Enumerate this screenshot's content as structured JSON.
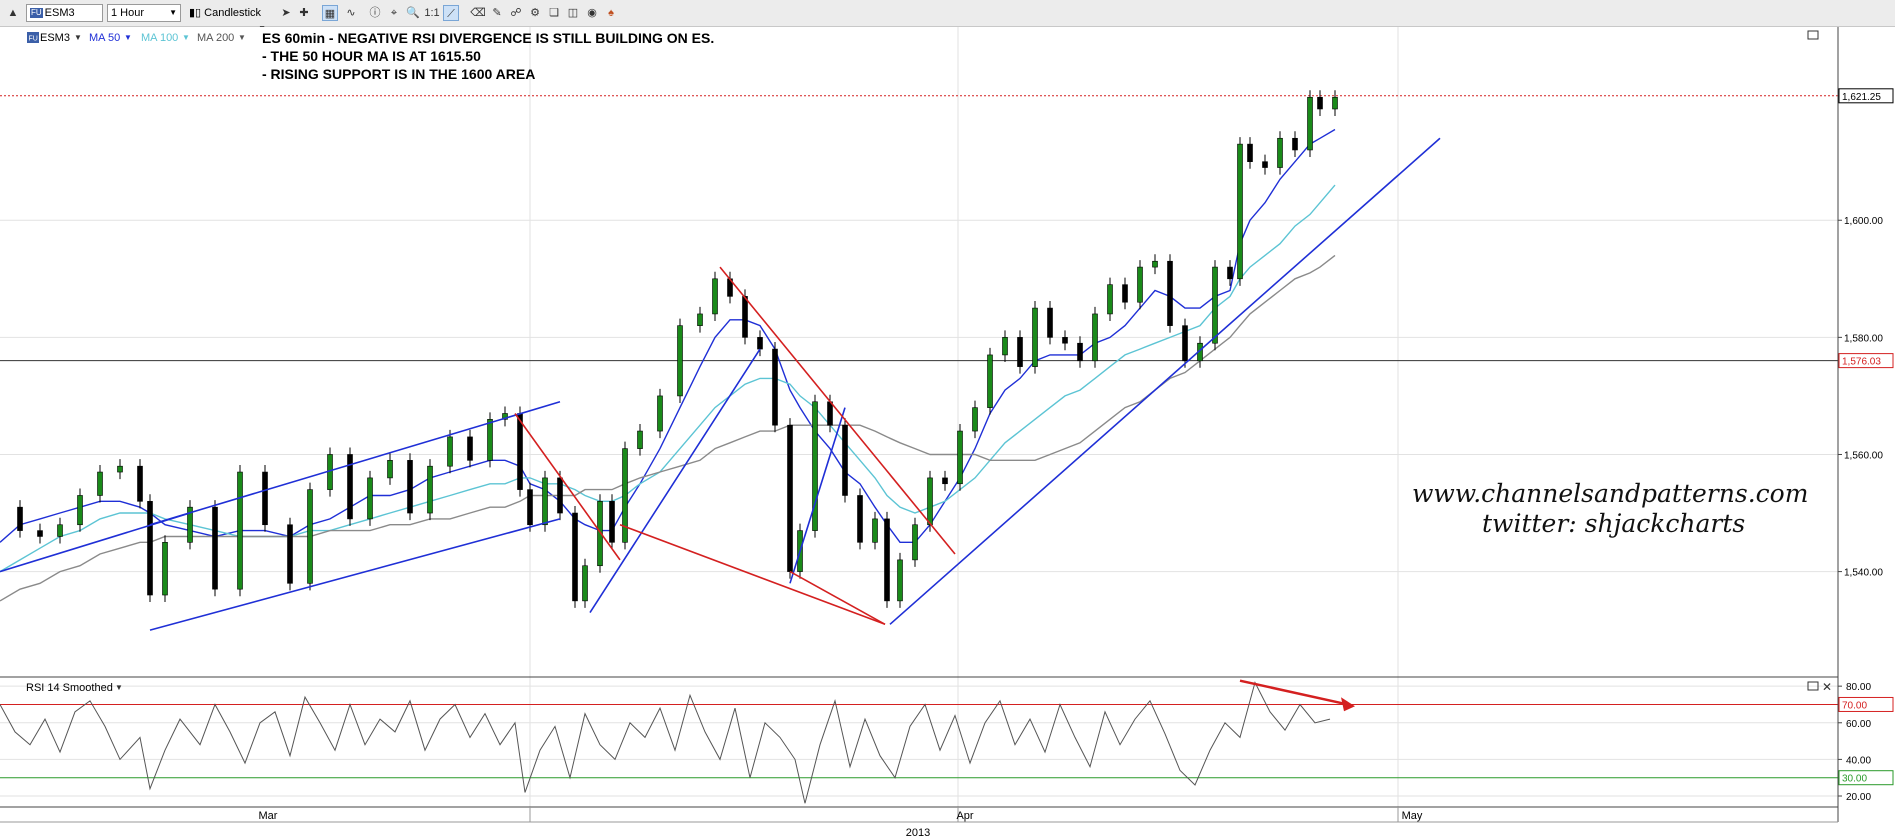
{
  "toolbar": {
    "symbol": "ESM3",
    "interval": "1 Hour",
    "chart_style": "Candlestick",
    "fu_badge": "FU"
  },
  "legend": {
    "symbol": "ESM3",
    "indicators": [
      "MA 50",
      "MA 100",
      "MA 200"
    ],
    "colors": {
      "ma50": "#1f2fd6",
      "ma100": "#5cc4d4",
      "ma200": "#8a8a8a"
    }
  },
  "annotations": {
    "title": "ES 60min - NEGATIVE RSI DIVERGENCE IS STILL BUILDING ON ES.",
    "line2": "- THE 50 HOUR MA IS AT 1615.50",
    "line3": "- RISING SUPPORT IS IN THE 1600 AREA",
    "watermark1": "www.channelsandpatterns.com",
    "watermark2": "twitter: shjackcharts"
  },
  "chart_data": [
    {
      "type": "line",
      "style": "candlestick",
      "y_axis_ticks": [
        "1,540.00",
        "1,560.00",
        "1,580.00",
        "1,600.00"
      ],
      "ylim": [
        1522,
        1633
      ],
      "price_markers": [
        {
          "label": "1,621.25",
          "value": 1621.25,
          "color": "#d42020"
        },
        {
          "label": "1,576.03",
          "value": 1576.03,
          "color": "#d42020"
        }
      ],
      "x_ticks": [
        "Mar",
        "Apr",
        "May"
      ],
      "x_year": "2013",
      "x": [
        0,
        20,
        40,
        60,
        80,
        100,
        120,
        140,
        150,
        165,
        190,
        215,
        240,
        265,
        290,
        310,
        330,
        350,
        370,
        390,
        410,
        430,
        450,
        470,
        490,
        505,
        520,
        530,
        545,
        560,
        575,
        585,
        600,
        612,
        625,
        640,
        660,
        680,
        700,
        715,
        730,
        745,
        760,
        775,
        790,
        800,
        815,
        830,
        845,
        860,
        875,
        887,
        900,
        915,
        930,
        945,
        960,
        975,
        990,
        1005,
        1020,
        1035,
        1050,
        1065,
        1080,
        1095,
        1110,
        1125,
        1140,
        1155,
        1170,
        1185,
        1200,
        1215,
        1230,
        1240,
        1250,
        1265,
        1280,
        1295,
        1310,
        1320,
        1335
      ],
      "series": [
        {
          "name": "ESM3",
          "values": [
            1551,
            1547,
            1546,
            1548,
            1553,
            1557,
            1558,
            1552,
            1536,
            1545,
            1551,
            1537,
            1557,
            1548,
            1538,
            1554,
            1560,
            1549,
            1556,
            1559,
            1550,
            1558,
            1563,
            1559,
            1566,
            1567,
            1554,
            1548,
            1556,
            1550,
            1535,
            1541,
            1552,
            1545,
            1561,
            1564,
            1570,
            1582,
            1584,
            1590,
            1587,
            1580,
            1578,
            1565,
            1540,
            1547,
            1569,
            1565,
            1553,
            1545,
            1549,
            1535,
            1542,
            1548,
            1556,
            1555,
            1564,
            1568,
            1577,
            1580,
            1575,
            1585,
            1580,
            1579,
            1576,
            1584,
            1589,
            1586,
            1592,
            1593,
            1582,
            1576,
            1579,
            1592,
            1590,
            1613,
            1610,
            1609,
            1614,
            1612,
            1621,
            1619,
            1621
          ]
        },
        {
          "name": "MA 50",
          "values": [
            1545,
            1548,
            1549,
            1550,
            1551,
            1552,
            1552,
            1551,
            1550,
            1548,
            1547,
            1546,
            1547,
            1547,
            1546,
            1548,
            1549,
            1551,
            1553,
            1553,
            1554,
            1556,
            1557,
            1558,
            1559,
            1559,
            1558,
            1555,
            1554,
            1552,
            1549,
            1548,
            1547,
            1547,
            1551,
            1555,
            1561,
            1568,
            1575,
            1580,
            1583,
            1583,
            1582,
            1578,
            1571,
            1568,
            1564,
            1561,
            1557,
            1555,
            1551,
            1548,
            1545,
            1545,
            1548,
            1552,
            1556,
            1561,
            1567,
            1571,
            1573,
            1576,
            1577,
            1577,
            1577,
            1579,
            1580,
            1582,
            1585,
            1588,
            1587,
            1585,
            1585,
            1587,
            1588,
            1596,
            1600,
            1603,
            1607,
            1610,
            1613,
            1614,
            1615.5
          ]
        },
        {
          "name": "MA 100",
          "values": [
            1540,
            1542,
            1544,
            1546,
            1547,
            1549,
            1550,
            1550,
            1550,
            1549,
            1548,
            1547,
            1546,
            1546,
            1546,
            1547,
            1547,
            1548,
            1549,
            1550,
            1551,
            1552,
            1553,
            1554,
            1555,
            1555,
            1556,
            1556,
            1555,
            1555,
            1554,
            1553,
            1552,
            1552,
            1553,
            1555,
            1557,
            1561,
            1565,
            1568,
            1570,
            1572,
            1573,
            1573,
            1572,
            1570,
            1568,
            1565,
            1562,
            1559,
            1556,
            1553,
            1551,
            1550,
            1551,
            1552,
            1554,
            1556,
            1559,
            1562,
            1564,
            1566,
            1568,
            1570,
            1571,
            1573,
            1575,
            1577,
            1578,
            1579,
            1580,
            1581,
            1582,
            1585,
            1587,
            1590,
            1592,
            1594,
            1596,
            1599,
            1601,
            1603,
            1606
          ]
        },
        {
          "name": "MA 200",
          "values": [
            1535,
            1537,
            1538,
            1540,
            1541,
            1543,
            1544,
            1545,
            1545,
            1546,
            1546,
            1546,
            1546,
            1546,
            1546,
            1546,
            1547,
            1547,
            1547,
            1548,
            1548,
            1549,
            1549,
            1550,
            1551,
            1551,
            1552,
            1553,
            1553,
            1553,
            1553,
            1554,
            1554,
            1554,
            1555,
            1556,
            1557,
            1558,
            1559,
            1561,
            1562,
            1563,
            1564,
            1564,
            1565,
            1565,
            1565,
            1565,
            1565,
            1565,
            1564,
            1563,
            1562,
            1561,
            1560,
            1560,
            1560,
            1560,
            1559,
            1559,
            1559,
            1559,
            1560,
            1561,
            1562,
            1564,
            1566,
            1568,
            1569,
            1571,
            1573,
            1574,
            1576,
            1578,
            1580,
            1582,
            1584,
            1586,
            1588,
            1590,
            1591,
            1592,
            1594
          ]
        }
      ],
      "trendlines": [
        {
          "color": "#1f2fd6",
          "points": [
            [
              0,
              1540
            ],
            [
              190,
              1550
            ]
          ]
        },
        {
          "color": "#1f2fd6",
          "points": [
            [
              150,
              1530
            ],
            [
              560,
              1549
            ]
          ]
        },
        {
          "color": "#1f2fd6",
          "points": [
            [
              150,
              1548
            ],
            [
              560,
              1569
            ]
          ]
        },
        {
          "color": "#1f2fd6",
          "points": [
            [
              590,
              1533
            ],
            [
              760,
              1578
            ]
          ]
        },
        {
          "color": "#1f2fd6",
          "points": [
            [
              790,
              1538
            ],
            [
              845,
              1568
            ]
          ]
        },
        {
          "color": "#1f2fd6",
          "points": [
            [
              890,
              1531
            ],
            [
              1440,
              1614
            ]
          ]
        },
        {
          "color": "#d42020",
          "points": [
            [
              515,
              1567
            ],
            [
              620,
              1542
            ]
          ]
        },
        {
          "color": "#d42020",
          "points": [
            [
              620,
              1548
            ],
            [
              885,
              1531
            ]
          ]
        },
        {
          "color": "#d42020",
          "points": [
            [
              720,
              1592
            ],
            [
              955,
              1543
            ]
          ]
        },
        {
          "color": "#d42020",
          "points": [
            [
              790,
              1540
            ],
            [
              885,
              1531
            ]
          ]
        }
      ],
      "horizontal_lines": [
        {
          "value": 1576.03,
          "color": "#333333",
          "style": "solid"
        },
        {
          "value": 1621.25,
          "color": "#d42020",
          "style": "dotted"
        }
      ],
      "grid": true
    },
    {
      "type": "line",
      "title": "RSI 14 Smoothed",
      "y_axis_ticks": [
        "20.00",
        "40.00",
        "60.00",
        "80.00"
      ],
      "ylim": [
        14,
        85
      ],
      "levels": [
        {
          "label": "70.00",
          "value": 70,
          "color": "#d42020"
        },
        {
          "label": "30.00",
          "value": 30,
          "color": "#2a9a2a"
        }
      ],
      "x": [
        0,
        15,
        30,
        45,
        60,
        75,
        90,
        105,
        120,
        140,
        150,
        165,
        180,
        200,
        215,
        230,
        245,
        260,
        275,
        290,
        305,
        320,
        335,
        350,
        365,
        380,
        395,
        410,
        425,
        440,
        455,
        470,
        485,
        500,
        515,
        525,
        540,
        555,
        570,
        585,
        600,
        615,
        630,
        645,
        660,
        675,
        690,
        705,
        720,
        735,
        750,
        765,
        780,
        795,
        805,
        820,
        835,
        850,
        865,
        880,
        895,
        910,
        925,
        940,
        955,
        970,
        985,
        1000,
        1015,
        1030,
        1045,
        1060,
        1075,
        1090,
        1105,
        1120,
        1135,
        1150,
        1165,
        1180,
        1195,
        1210,
        1225,
        1240,
        1255,
        1270,
        1285,
        1300,
        1315,
        1330
      ],
      "series": [
        {
          "name": "RSI 14 Smoothed",
          "values": [
            70,
            55,
            48,
            62,
            44,
            66,
            72,
            58,
            40,
            52,
            24,
            45,
            62,
            48,
            70,
            55,
            38,
            60,
            66,
            42,
            74,
            60,
            45,
            70,
            48,
            62,
            55,
            72,
            45,
            62,
            70,
            52,
            65,
            48,
            60,
            22,
            45,
            58,
            30,
            65,
            48,
            40,
            60,
            52,
            68,
            45,
            75,
            55,
            40,
            68,
            30,
            60,
            52,
            40,
            16,
            48,
            72,
            36,
            62,
            42,
            30,
            58,
            70,
            45,
            64,
            38,
            60,
            72,
            48,
            62,
            44,
            70,
            52,
            36,
            66,
            48,
            62,
            72,
            54,
            34,
            26,
            45,
            60,
            52,
            82,
            66,
            56,
            70,
            60,
            62
          ]
        }
      ],
      "arrow": {
        "color": "#d42020",
        "points": [
          [
            1240,
            83
          ],
          [
            1355,
            69
          ]
        ]
      }
    }
  ]
}
